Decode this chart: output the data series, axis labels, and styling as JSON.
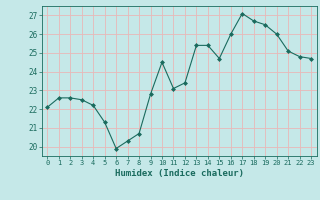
{
  "x": [
    0,
    1,
    2,
    3,
    4,
    5,
    6,
    7,
    8,
    9,
    10,
    11,
    12,
    13,
    14,
    15,
    16,
    17,
    18,
    19,
    20,
    21,
    22,
    23
  ],
  "y": [
    22.1,
    22.6,
    22.6,
    22.5,
    22.2,
    21.3,
    19.9,
    20.3,
    20.7,
    22.8,
    24.5,
    23.1,
    23.4,
    25.4,
    25.4,
    24.7,
    26.0,
    27.1,
    26.7,
    26.5,
    26.0,
    25.1,
    24.8,
    24.7
  ],
  "line_color": "#1a6b5e",
  "marker": "D",
  "marker_size": 2.0,
  "background_color": "#c5e8e8",
  "grid_color": "#e8b8b8",
  "xlabel": "Humidex (Indice chaleur)",
  "ylabel_ticks": [
    20,
    21,
    22,
    23,
    24,
    25,
    26,
    27
  ],
  "xtick_labels": [
    "0",
    "1",
    "2",
    "3",
    "4",
    "5",
    "6",
    "7",
    "8",
    "9",
    "10",
    "11",
    "12",
    "13",
    "14",
    "15",
    "16",
    "17",
    "18",
    "19",
    "20",
    "21",
    "22",
    "23"
  ],
  "xlim": [
    -0.5,
    23.5
  ],
  "ylim": [
    19.5,
    27.5
  ]
}
